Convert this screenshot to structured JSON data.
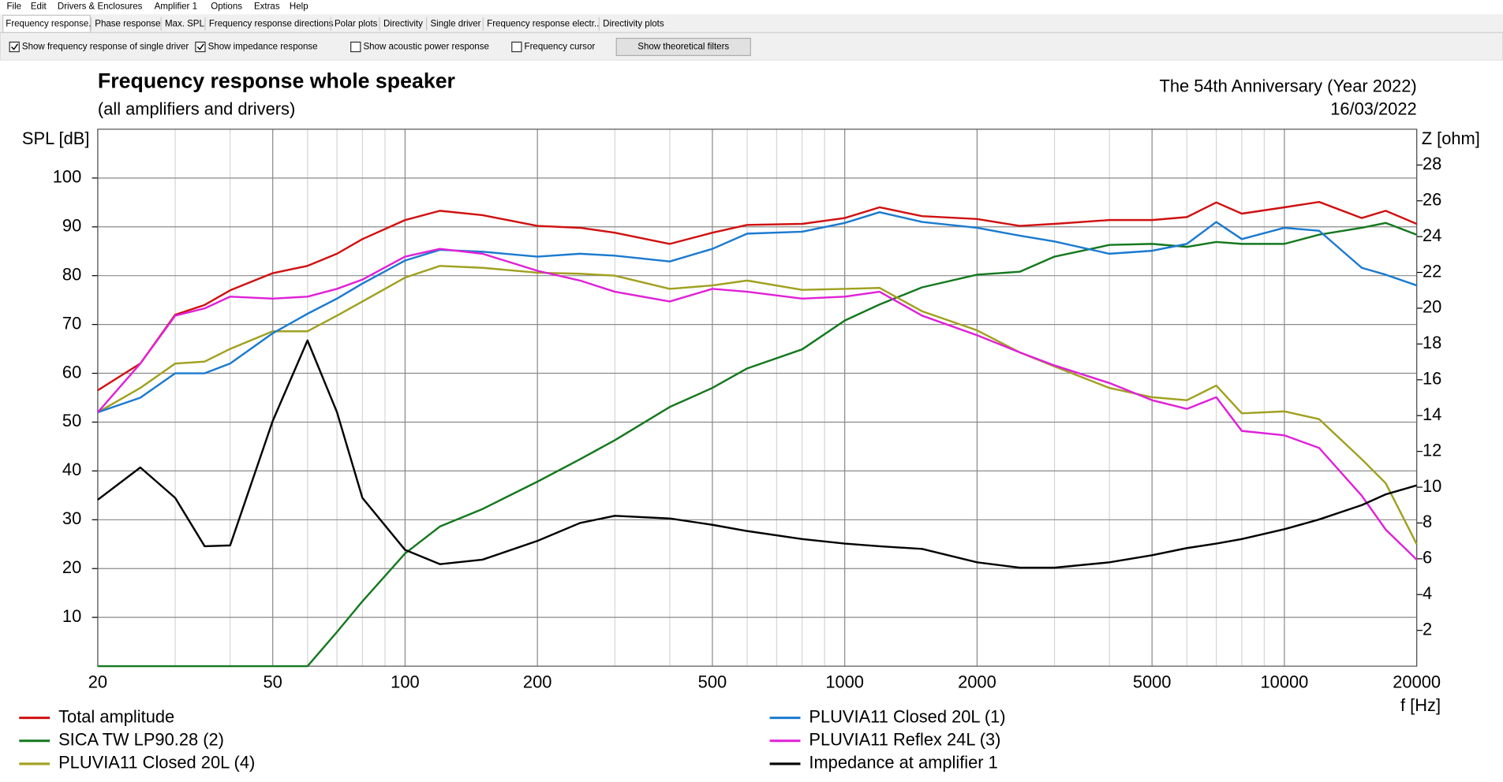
{
  "menu": [
    "File",
    "Edit",
    "Drivers & Enclosures",
    "Amplifier 1",
    "Options",
    "Extras",
    "Help"
  ],
  "tabs": [
    "Frequency response.",
    "Phase response",
    "Max. SPL",
    "Frequency response directions",
    "Polar plots",
    "Directivity",
    "Single driver",
    "Frequency response electr..",
    "Directivity plots"
  ],
  "toolbar": {
    "checkboxes": [
      {
        "label": "Show frequency response of single driver",
        "checked": true
      },
      {
        "label": "Show impedance response",
        "checked": true
      },
      {
        "label": "Show acoustic power response",
        "checked": false
      },
      {
        "label": "Frequency cursor",
        "checked": false
      }
    ],
    "button": "Show theoretical filters"
  },
  "chart_data": {
    "type": "line",
    "title": "Frequency response whole speaker",
    "subtitle": "(all amplifiers and drivers)",
    "annotations": [
      "The 54th Anniversary (Year 2022)",
      "16/03/2022"
    ],
    "ylabel": "SPL [dB]",
    "y2label": "Z [ohm]",
    "xlabel": "f [Hz]",
    "xlog": true,
    "grid": true,
    "xlim": [
      20,
      20000
    ],
    "xticks": [
      20,
      50,
      100,
      200,
      500,
      1000,
      2000,
      5000,
      10000,
      20000
    ],
    "xminorticks": [
      30,
      40,
      60,
      70,
      80,
      90,
      300,
      400,
      600,
      700,
      800,
      900,
      3000,
      4000,
      6000,
      7000,
      8000,
      9000
    ],
    "ylim": [
      0,
      110
    ],
    "yticks": [
      10,
      20,
      30,
      40,
      50,
      60,
      70,
      80,
      90,
      100
    ],
    "y2lim": [
      0,
      30
    ],
    "y2ticks": [
      2,
      4,
      6,
      8,
      10,
      12,
      14,
      16,
      18,
      20,
      22,
      24,
      26,
      28
    ],
    "x": [
      20,
      25,
      30,
      35,
      40,
      50,
      60,
      70,
      80,
      100,
      120,
      150,
      200,
      250,
      300,
      400,
      500,
      600,
      800,
      1000,
      1200,
      1500,
      2000,
      2500,
      3000,
      4000,
      5000,
      6000,
      7000,
      8000,
      10000,
      12000,
      15000,
      17000,
      20000
    ],
    "series": [
      {
        "name": "Total amplitude",
        "color": "#d01010",
        "values": [
          56.5,
          62,
          72,
          74,
          77,
          80.5,
          82,
          84.5,
          87.5,
          91.4,
          93.3,
          92.4,
          90.2,
          89.8,
          88.8,
          86.5,
          88.8,
          90.4,
          90.6,
          91.8,
          94,
          92.2,
          91.6,
          90.2,
          90.6,
          91.4,
          91.4,
          92,
          95,
          92.7,
          94,
          95.1,
          91.8,
          93.3,
          90.6
        ]
      },
      {
        "name": "SICA TW LP90.28 (2)",
        "color": "#14781e",
        "values": [
          0,
          0,
          0,
          0,
          0,
          0,
          0,
          7,
          13.3,
          23.1,
          28.6,
          32.2,
          37.8,
          42.4,
          46.3,
          53.1,
          57,
          61,
          64.9,
          70.8,
          74.1,
          77.6,
          80.2,
          80.8,
          83.9,
          86.3,
          86.5,
          85.9,
          86.9,
          86.5,
          86.5,
          88.4,
          89.8,
          90.8,
          88.4
        ]
      },
      {
        "name": "PLUVIA11 Closed 20L (4)",
        "color": "#a0a020",
        "values": [
          52,
          57,
          62,
          62.4,
          65,
          68.6,
          68.6,
          71.8,
          74.7,
          79.6,
          82,
          81.6,
          80.6,
          80.4,
          80,
          77.3,
          78,
          79,
          77.1,
          77.3,
          77.5,
          72.7,
          68.8,
          64.3,
          61.4,
          57,
          55.1,
          54.5,
          57.5,
          51.8,
          52.2,
          50.6,
          42.4,
          37.5,
          25
        ]
      },
      {
        "name": "PLUVIA11 Closed 20L (1)",
        "color": "#1a7ad0",
        "values": [
          52,
          55,
          60,
          60,
          62,
          68.2,
          72.2,
          75.3,
          78.4,
          83.1,
          85.3,
          84.9,
          83.9,
          84.5,
          84.1,
          82.9,
          85.5,
          88.6,
          89,
          90.8,
          93,
          91,
          89.8,
          88.2,
          87,
          84.5,
          85.1,
          86.5,
          91,
          87.5,
          89.8,
          89.2,
          81.6,
          80.2,
          78
        ]
      },
      {
        "name": "PLUVIA11 Reflex 24L (3)",
        "color": "#e020d8",
        "values": [
          52,
          62,
          71.8,
          73.3,
          75.7,
          75.3,
          75.7,
          77.3,
          79.2,
          83.9,
          85.5,
          84.5,
          81,
          79,
          76.7,
          74.7,
          77.3,
          76.7,
          75.3,
          75.7,
          76.7,
          71.8,
          67.8,
          64.3,
          61.6,
          58,
          54.5,
          52.7,
          55.1,
          48.2,
          47.3,
          44.7,
          34.9,
          28,
          21.8
        ]
      },
      {
        "name": "Impedance at amplifier 1",
        "color": "#000000",
        "axis": "y2",
        "values": [
          9.3,
          11.1,
          9.4,
          6.7,
          6.75,
          13.7,
          18.2,
          14.2,
          9.4,
          6.5,
          5.7,
          5.95,
          7,
          8,
          8.4,
          8.25,
          7.9,
          7.55,
          7.1,
          6.85,
          6.7,
          6.55,
          5.8,
          5.5,
          5.5,
          5.8,
          6.2,
          6.6,
          6.85,
          7.1,
          7.65,
          8.2,
          9,
          9.6,
          10.1
        ]
      }
    ]
  }
}
